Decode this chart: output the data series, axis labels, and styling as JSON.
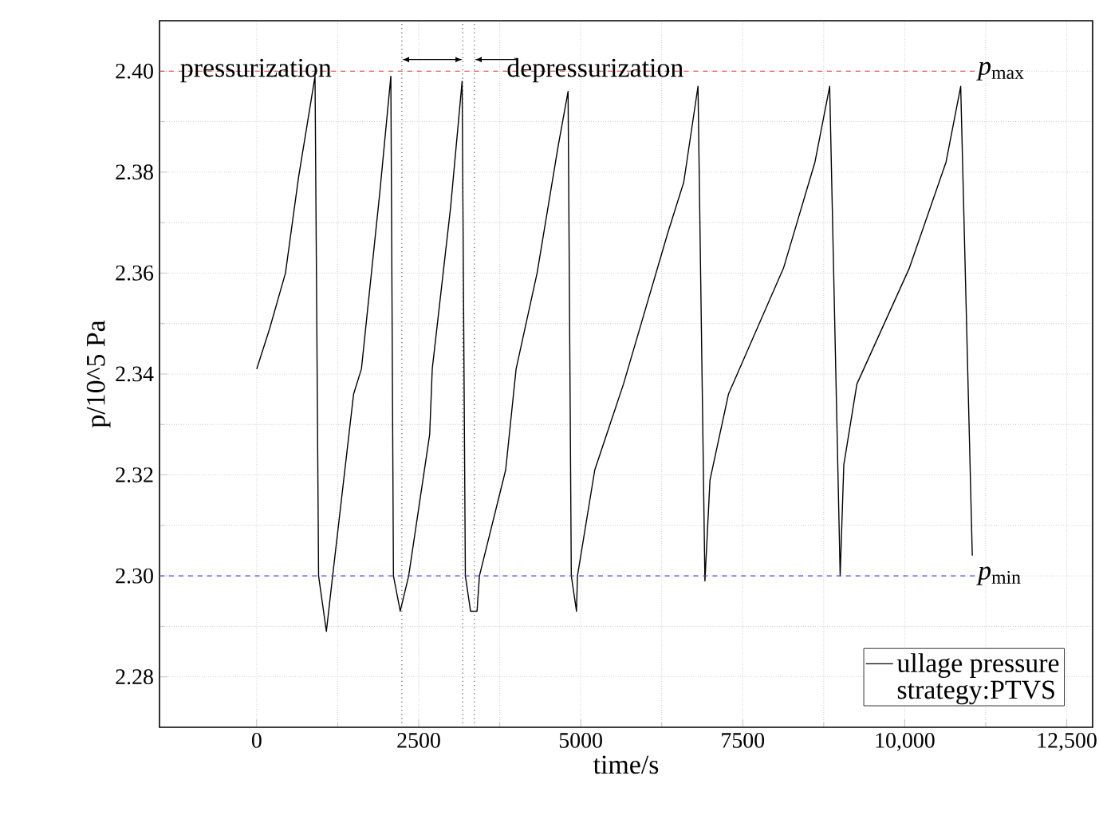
{
  "chart_data": {
    "type": "line",
    "xlabel": "time/s",
    "ylabel": "p/10^5 Pa",
    "xlim": [
      -1500,
      12900
    ],
    "ylim": [
      2.27,
      2.41
    ],
    "xticks": [
      0,
      2500,
      5000,
      7500,
      {
        "value": 10000,
        "label": "10,000"
      },
      {
        "value": 12500,
        "label": "12,500"
      }
    ],
    "yticks": [
      2.28,
      {
        "value": 2.3,
        "label": "2.30"
      },
      2.32,
      2.34,
      2.36,
      2.38,
      {
        "value": 2.4,
        "label": "2.40"
      }
    ],
    "grid": true,
    "legend": "bottom right",
    "series": [
      {
        "name": "ullage pressure",
        "color": "#000000",
        "x": [
          0,
          200,
          444,
          646,
          900,
          955,
          1075,
          1172,
          1495,
          1616,
          1900,
          2070,
          2110,
          2215,
          2345,
          2669,
          2709,
          2992,
          3170,
          3220,
          3300,
          3400,
          3437,
          3842,
          4003,
          4327,
          4650,
          4805,
          4855,
          4935,
          4950,
          5217,
          5660,
          6345,
          6590,
          6810,
          6917,
          6995,
          7280,
          8130,
          8615,
          8842,
          9004,
          9060,
          9262,
          10072,
          10638,
          10864,
          11043
        ],
        "values": [
          2.341,
          2.349,
          2.36,
          2.379,
          2.399,
          2.3,
          2.289,
          2.3,
          2.336,
          2.341,
          2.376,
          2.399,
          2.3,
          2.293,
          2.3,
          2.328,
          2.341,
          2.373,
          2.398,
          2.3,
          2.293,
          2.293,
          2.3,
          2.321,
          2.341,
          2.36,
          2.385,
          2.396,
          2.3,
          2.293,
          2.3,
          2.321,
          2.338,
          2.368,
          2.378,
          2.397,
          2.299,
          2.319,
          2.336,
          2.361,
          2.382,
          2.397,
          2.3,
          2.322,
          2.338,
          2.361,
          2.382,
          2.397,
          2.304
        ]
      }
    ],
    "ref_lines": [
      {
        "axis": "y",
        "value": 2.4,
        "label": "*p*$_{max}$",
        "color": "#e03c3c",
        "line_style": "dashed"
      },
      {
        "axis": "y",
        "value": 2.3,
        "label": "*p*$_{min}$",
        "color": "#4a4ae0",
        "line_style": "dashed"
      },
      {
        "axis": "x",
        "value": 2240,
        "color": "#555555",
        "line_style": "dotted"
      },
      {
        "axis": "x",
        "value": 3180,
        "color": "#555555",
        "line_style": "dotted"
      },
      {
        "axis": "x",
        "value": 3360,
        "color": "#555555",
        "line_style": "dotted"
      }
    ],
    "annotations": [
      "pressurization",
      "depressurization",
      "strategy:PTVS"
    ]
  }
}
